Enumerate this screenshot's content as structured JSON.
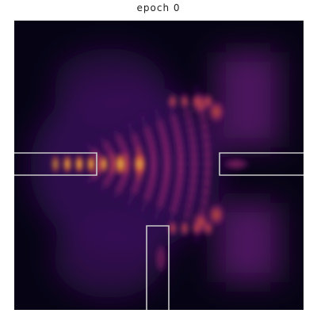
{
  "title": "epoch 0",
  "colors": {
    "background": "#060414",
    "outline": "#c8c8c8",
    "colormap": [
      "#000004",
      "#1b0c41",
      "#4a0c6b",
      "#781c6d",
      "#a52c60",
      "#cf4446",
      "#ed6925",
      "#fb9b06",
      "#f7d13d",
      "#fcffa4"
    ]
  },
  "ports": [
    "left-input-waveguide",
    "right-output-waveguide",
    "bottom-output-waveguide"
  ]
}
